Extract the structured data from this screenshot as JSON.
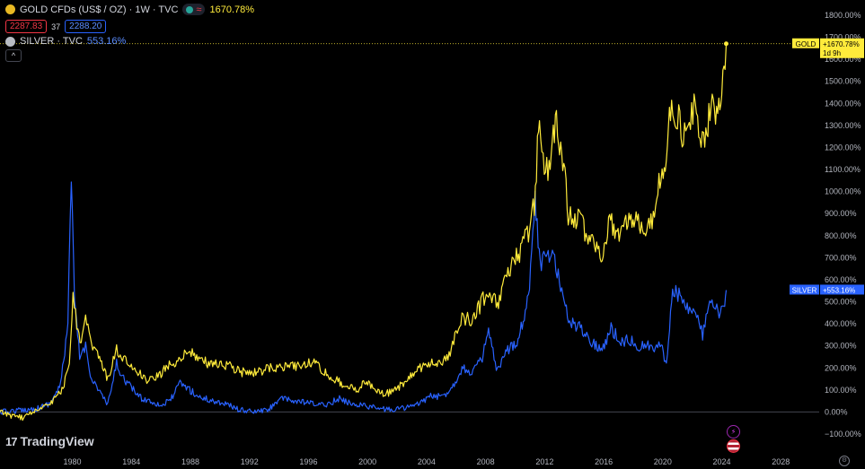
{
  "header": {
    "gold_title": "GOLD CFDs (US$ / OZ) · 1W · TVC",
    "gold_change": "1670.78%",
    "bid": "2287.83",
    "spread": "37",
    "ask": "2288.20",
    "silver_title": "SILVER · TVC",
    "silver_change": "553.16%",
    "collapse_glyph": "^"
  },
  "logo": {
    "mark": "17",
    "text": "TradingView"
  },
  "colors": {
    "gold": "#ffeb3b",
    "silver": "#2962ff",
    "background": "#000000",
    "axis_text": "#d1d4dc"
  },
  "icons": [
    "gold-coin-icon",
    "silver-coin-icon",
    "market-open-dot-icon",
    "wave-icon",
    "chevron-up-icon",
    "lightning-icon",
    "us-flag-icon",
    "settings-icon"
  ],
  "chart_data": {
    "type": "line",
    "y_axis": {
      "position": "right",
      "min": -100,
      "max": 1800,
      "step": 100,
      "tick_labels": [
        "1800.00%",
        "1700.00%",
        "1600.00%",
        "1500.00%",
        "1400.00%",
        "1300.00%",
        "1200.00%",
        "1100.00%",
        "1000.00%",
        "900.00%",
        "800.00%",
        "700.00%",
        "600.00%",
        "500.00%",
        "400.00%",
        "300.00%",
        "200.00%",
        "100.00%",
        "0.00%",
        "−100.00%"
      ]
    },
    "x_axis": {
      "min": 1975.1,
      "max": 2030.6,
      "ticks": [
        1980,
        1984,
        1988,
        1992,
        1996,
        2000,
        2004,
        2008,
        2012,
        2016,
        2020,
        2024,
        2028
      ],
      "tick_labels": [
        "1980",
        "1984",
        "1988",
        "1992",
        "1996",
        "2000",
        "2004",
        "2008",
        "2012",
        "2016",
        "2020",
        "2024",
        "2028"
      ]
    },
    "grid": false,
    "series": [
      {
        "name": "GOLD",
        "last_label": "GOLD",
        "last_value_label": "+1670.78%",
        "last_time_label": "1d 9h",
        "last_value": 1670.78,
        "points": [
          [
            1975.1,
            0
          ],
          [
            1976.0,
            -20
          ],
          [
            1976.7,
            -25
          ],
          [
            1977.5,
            10
          ],
          [
            1978.5,
            40
          ],
          [
            1979.3,
            100
          ],
          [
            1979.8,
            200
          ],
          [
            1980.05,
            560
          ],
          [
            1980.3,
            370
          ],
          [
            1980.6,
            300
          ],
          [
            1980.9,
            420
          ],
          [
            1981.3,
            300
          ],
          [
            1981.7,
            260
          ],
          [
            1982.4,
            150
          ],
          [
            1983.0,
            280
          ],
          [
            1983.4,
            240
          ],
          [
            1984.0,
            210
          ],
          [
            1984.6,
            170
          ],
          [
            1985.2,
            140
          ],
          [
            1985.8,
            160
          ],
          [
            1986.5,
            210
          ],
          [
            1987.0,
            230
          ],
          [
            1987.9,
            280
          ],
          [
            1988.5,
            240
          ],
          [
            1989.3,
            220
          ],
          [
            1990.0,
            220
          ],
          [
            1990.6,
            210
          ],
          [
            1991.5,
            180
          ],
          [
            1992.5,
            180
          ],
          [
            1993.5,
            200
          ],
          [
            1994.5,
            210
          ],
          [
            1995.5,
            210
          ],
          [
            1996.1,
            230
          ],
          [
            1996.8,
            200
          ],
          [
            1997.5,
            160
          ],
          [
            1998.5,
            120
          ],
          [
            1999.3,
            100
          ],
          [
            1999.8,
            140
          ],
          [
            2000.5,
            110
          ],
          [
            2001.2,
            80
          ],
          [
            2001.8,
            100
          ],
          [
            2002.5,
            130
          ],
          [
            2003.2,
            180
          ],
          [
            2004.0,
            220
          ],
          [
            2005.0,
            230
          ],
          [
            2005.6,
            270
          ],
          [
            2006.0,
            350
          ],
          [
            2006.4,
            430
          ],
          [
            2007.0,
            420
          ],
          [
            2007.6,
            480
          ],
          [
            2008.2,
            560
          ],
          [
            2008.8,
            490
          ],
          [
            2009.3,
            580
          ],
          [
            2009.8,
            680
          ],
          [
            2010.3,
            720
          ],
          [
            2010.9,
            820
          ],
          [
            2011.3,
            950
          ],
          [
            2011.65,
            1350
          ],
          [
            2011.9,
            1150
          ],
          [
            2012.3,
            1100
          ],
          [
            2012.8,
            1330
          ],
          [
            2013.3,
            1100
          ],
          [
            2013.6,
            900
          ],
          [
            2014.2,
            880
          ],
          [
            2014.8,
            820
          ],
          [
            2015.3,
            770
          ],
          [
            2015.9,
            720
          ],
          [
            2016.4,
            880
          ],
          [
            2016.9,
            780
          ],
          [
            2017.5,
            860
          ],
          [
            2018.2,
            900
          ],
          [
            2018.7,
            780
          ],
          [
            2019.2,
            850
          ],
          [
            2019.6,
            1000
          ],
          [
            2020.1,
            1080
          ],
          [
            2020.6,
            1400
          ],
          [
            2021.0,
            1350
          ],
          [
            2021.4,
            1240
          ],
          [
            2021.8,
            1320
          ],
          [
            2022.2,
            1420
          ],
          [
            2022.6,
            1250
          ],
          [
            2022.85,
            1180
          ],
          [
            2023.2,
            1400
          ],
          [
            2023.5,
            1350
          ],
          [
            2023.8,
            1420
          ],
          [
            2024.0,
            1450
          ],
          [
            2024.15,
            1560
          ],
          [
            2024.3,
            1670.78
          ]
        ]
      },
      {
        "name": "SILVER",
        "last_label": "SILVER",
        "last_value_label": "+553.16%",
        "last_value": 553.16,
        "points": [
          [
            1975.1,
            0
          ],
          [
            1976.0,
            5
          ],
          [
            1976.8,
            10
          ],
          [
            1977.6,
            15
          ],
          [
            1978.5,
            40
          ],
          [
            1979.2,
            120
          ],
          [
            1979.7,
            400
          ],
          [
            1979.93,
            1050
          ],
          [
            1980.15,
            500
          ],
          [
            1980.5,
            250
          ],
          [
            1980.9,
            300
          ],
          [
            1981.3,
            150
          ],
          [
            1981.8,
            100
          ],
          [
            1982.4,
            30
          ],
          [
            1983.0,
            220
          ],
          [
            1983.4,
            160
          ],
          [
            1984.0,
            110
          ],
          [
            1984.7,
            60
          ],
          [
            1985.3,
            50
          ],
          [
            1986.0,
            30
          ],
          [
            1986.6,
            50
          ],
          [
            1987.3,
            130
          ],
          [
            1987.8,
            110
          ],
          [
            1988.5,
            70
          ],
          [
            1989.5,
            50
          ],
          [
            1990.3,
            40
          ],
          [
            1991.3,
            10
          ],
          [
            1992.3,
            0
          ],
          [
            1993.3,
            10
          ],
          [
            1994.0,
            60
          ],
          [
            1995.0,
            50
          ],
          [
            1996.0,
            40
          ],
          [
            1997.0,
            30
          ],
          [
            1998.1,
            60
          ],
          [
            1998.8,
            40
          ],
          [
            1999.8,
            30
          ],
          [
            2000.8,
            15
          ],
          [
            2001.6,
            10
          ],
          [
            2002.5,
            20
          ],
          [
            2003.3,
            30
          ],
          [
            2004.2,
            70
          ],
          [
            2005.1,
            70
          ],
          [
            2005.8,
            120
          ],
          [
            2006.4,
            200
          ],
          [
            2007.0,
            180
          ],
          [
            2007.7,
            230
          ],
          [
            2008.2,
            360
          ],
          [
            2008.8,
            180
          ],
          [
            2009.5,
            280
          ],
          [
            2010.2,
            330
          ],
          [
            2010.9,
            520
          ],
          [
            2011.35,
            950
          ],
          [
            2011.7,
            680
          ],
          [
            2012.1,
            700
          ],
          [
            2012.6,
            720
          ],
          [
            2013.0,
            600
          ],
          [
            2013.4,
            460
          ],
          [
            2013.9,
            400
          ],
          [
            2014.5,
            380
          ],
          [
            2015.2,
            320
          ],
          [
            2015.9,
            280
          ],
          [
            2016.5,
            380
          ],
          [
            2017.1,
            320
          ],
          [
            2017.7,
            330
          ],
          [
            2018.4,
            300
          ],
          [
            2019.0,
            300
          ],
          [
            2019.5,
            280
          ],
          [
            2019.9,
            330
          ],
          [
            2020.25,
            200
          ],
          [
            2020.6,
            530
          ],
          [
            2021.1,
            540
          ],
          [
            2021.5,
            500
          ],
          [
            2021.9,
            460
          ],
          [
            2022.3,
            430
          ],
          [
            2022.7,
            350
          ],
          [
            2023.1,
            480
          ],
          [
            2023.5,
            470
          ],
          [
            2023.9,
            440
          ],
          [
            2024.2,
            480
          ],
          [
            2024.3,
            553.16
          ]
        ]
      }
    ]
  }
}
